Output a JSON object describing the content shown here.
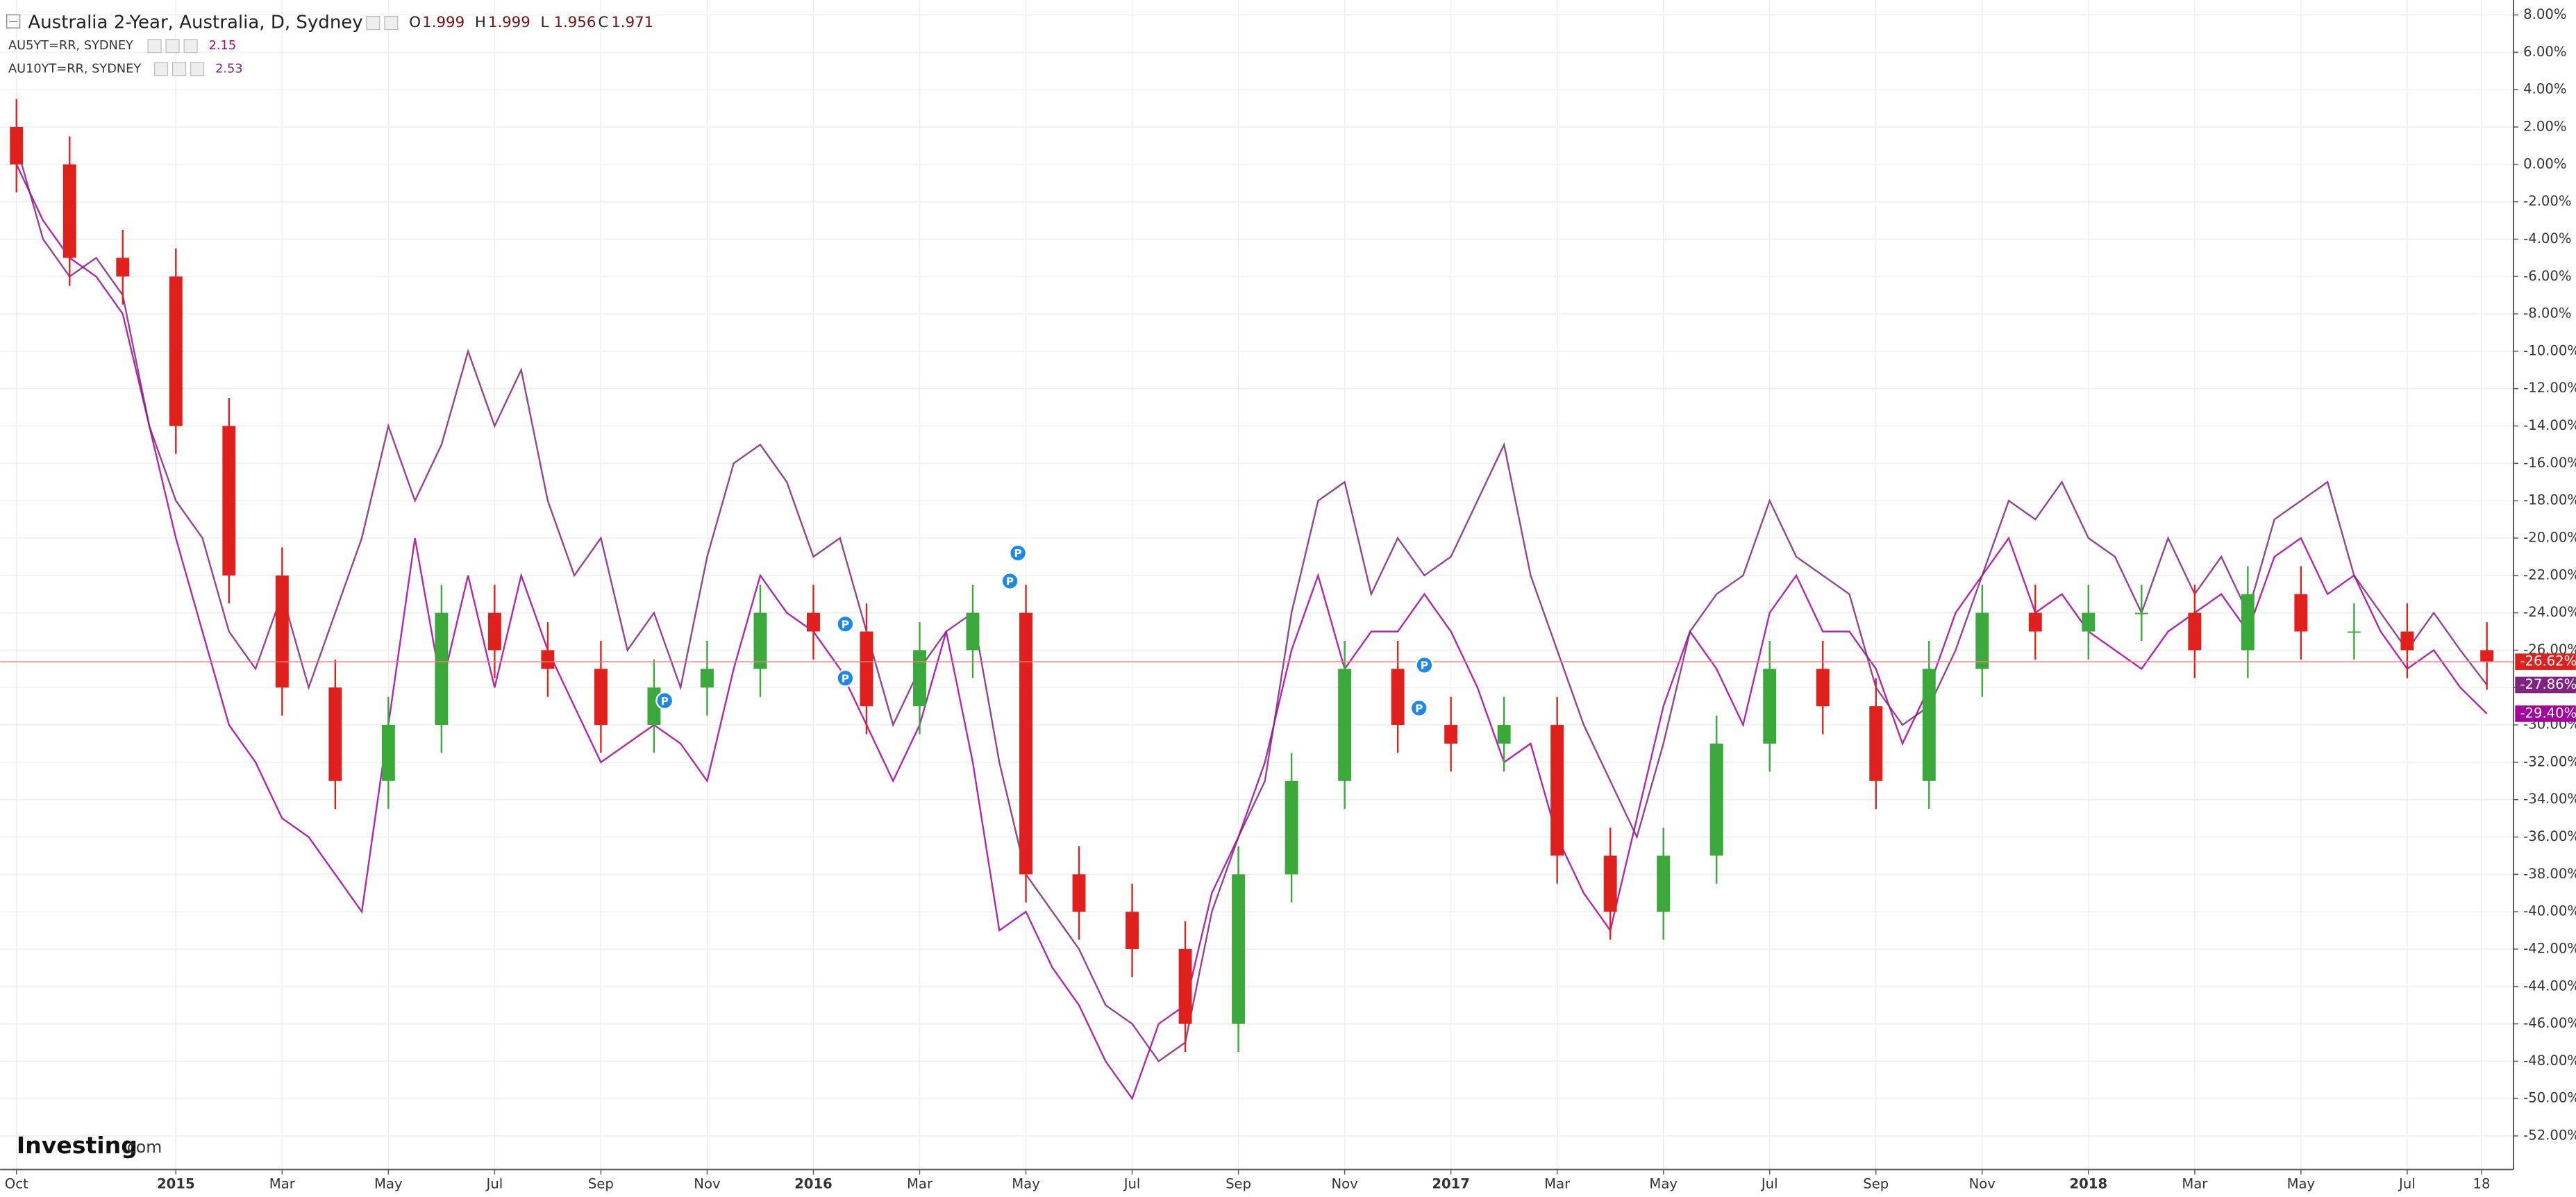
{
  "chart_data": {
    "type": "candlestick",
    "title": "Australia 2-Year, Australia, D, Sydney",
    "ohlc_labels": [
      "O",
      "H",
      "L",
      "C"
    ],
    "ohlc_values": [
      1.999,
      1.999,
      1.956,
      1.971
    ],
    "logo": "Investing",
    "logo_suffix": ".com",
    "grid": true,
    "xlim": [
      -0.2,
      47.0
    ],
    "xticks": [
      {
        "value": 0,
        "label": "Oct"
      },
      {
        "value": 3,
        "label": "2015"
      },
      {
        "value": 5,
        "label": "Mar"
      },
      {
        "value": 7,
        "label": "May"
      },
      {
        "value": 9,
        "label": "Jul"
      },
      {
        "value": 11,
        "label": "Sep"
      },
      {
        "value": 13,
        "label": "Nov"
      },
      {
        "value": 15,
        "label": "2016"
      },
      {
        "value": 17,
        "label": "Mar"
      },
      {
        "value": 19,
        "label": "May"
      },
      {
        "value": 21,
        "label": "Jul"
      },
      {
        "value": 23,
        "label": "Sep"
      },
      {
        "value": 25,
        "label": "Nov"
      },
      {
        "value": 27,
        "label": "2017"
      },
      {
        "value": 29,
        "label": "Mar"
      },
      {
        "value": 31,
        "label": "May"
      },
      {
        "value": 33,
        "label": "Jul"
      },
      {
        "value": 35,
        "label": "Sep"
      },
      {
        "value": 37,
        "label": "Nov"
      },
      {
        "value": 39,
        "label": "2018"
      },
      {
        "value": 41,
        "label": "Mar"
      },
      {
        "value": 43,
        "label": "May"
      },
      {
        "value": 45,
        "label": "Jul"
      },
      {
        "value": 46.4,
        "label": "18"
      }
    ],
    "ylim": [
      -53.8,
      8.8
    ],
    "yticks": [
      {
        "value": 8,
        "label": "8.00%"
      },
      {
        "value": 6,
        "label": "6.00%"
      },
      {
        "value": 4,
        "label": "4.00%"
      },
      {
        "value": 2,
        "label": "2.00%"
      },
      {
        "value": 0,
        "label": "0.00%"
      },
      {
        "value": -2,
        "label": "-2.00%"
      },
      {
        "value": -4,
        "label": "-4.00%"
      },
      {
        "value": -6,
        "label": "-6.00%"
      },
      {
        "value": -8,
        "label": "-8.00%"
      },
      {
        "value": -10,
        "label": "-10.00%"
      },
      {
        "value": -12,
        "label": "-12.00%"
      },
      {
        "value": -14,
        "label": "-14.00%"
      },
      {
        "value": -16,
        "label": "-16.00%"
      },
      {
        "value": -18,
        "label": "-18.00%"
      },
      {
        "value": -20,
        "label": "-20.00%"
      },
      {
        "value": -22,
        "label": "-22.00%"
      },
      {
        "value": -24,
        "label": "-24.00%"
      },
      {
        "value": -26,
        "label": "-26.00%"
      },
      {
        "value": -28,
        "label": "-28.00%"
      },
      {
        "value": -30,
        "label": "-30.00%"
      },
      {
        "value": -32,
        "label": "-32.00%"
      },
      {
        "value": -34,
        "label": "-34.00%"
      },
      {
        "value": -36,
        "label": "-36.00%"
      },
      {
        "value": -38,
        "label": "-38.00%"
      },
      {
        "value": -40,
        "label": "-40.00%"
      },
      {
        "value": -42,
        "label": "-42.00%"
      },
      {
        "value": -44,
        "label": "-44.00%"
      },
      {
        "value": -46,
        "label": "-46.00%"
      },
      {
        "value": -48,
        "label": "-48.00%"
      },
      {
        "value": -50,
        "label": "-50.00%"
      },
      {
        "value": -52,
        "label": "-52.00%"
      }
    ],
    "candle": {
      "up_color": "#3aa83a",
      "down_color": "#e0201c",
      "last_label": "-26.62%",
      "x": [
        0,
        1,
        2,
        3,
        4,
        5,
        6,
        7,
        8,
        9,
        10,
        11,
        12,
        13,
        14,
        15,
        16,
        17,
        18,
        19,
        20,
        21,
        22,
        23,
        24,
        25,
        26,
        27,
        28,
        29,
        30,
        31,
        32,
        33,
        34,
        35,
        36,
        37,
        38,
        39,
        40,
        41,
        42,
        43,
        44,
        45,
        46.5
      ],
      "open": [
        2,
        0,
        -5,
        -6,
        -14,
        -22,
        -28,
        -33,
        -30,
        -24,
        -26,
        -27,
        -30,
        -28,
        -27,
        -24,
        -25,
        -29,
        -26,
        -24,
        -38,
        -40,
        -42,
        -46,
        -38,
        -33,
        -27,
        -30,
        -31,
        -30,
        -37,
        -40,
        -37,
        -31,
        -27,
        -29,
        -33,
        -27,
        -24,
        -25,
        -24,
        -24,
        -26,
        -23,
        -25,
        -25,
        -26
      ],
      "high": [
        3.5,
        1.5,
        -3.5,
        -4.5,
        -12.5,
        -20.5,
        -26.5,
        -28.5,
        -22.5,
        -22.5,
        -24.5,
        -25.5,
        -26.5,
        -25.5,
        -22.5,
        -22.5,
        -23.5,
        -24.5,
        -22.5,
        -22.5,
        -36.5,
        -38.5,
        -40.5,
        -36.5,
        -31.5,
        -25.5,
        -25.5,
        -28.5,
        -28.5,
        -28.5,
        -35.5,
        -35.5,
        -29.5,
        -25.5,
        -25.5,
        -27.5,
        -25.5,
        -22.5,
        -22.5,
        -22.5,
        -22.5,
        -22.5,
        -21.5,
        -21.5,
        -23.5,
        -23.5,
        -24.5
      ],
      "low": [
        -1.5,
        -6.5,
        -7.5,
        -15.5,
        -23.5,
        -29.5,
        -34.5,
        -34.5,
        -31.5,
        -27.5,
        -28.5,
        -31.5,
        -31.5,
        -29.5,
        -28.5,
        -26.5,
        -30.5,
        -30.5,
        -27.5,
        -39.5,
        -41.5,
        -43.5,
        -47.5,
        -47.5,
        -39.5,
        -34.5,
        -31.5,
        -32.5,
        -32.5,
        -38.5,
        -41.5,
        -41.5,
        -38.5,
        -32.5,
        -30.5,
        -34.5,
        -34.5,
        -28.5,
        -26.5,
        -26.5,
        -25.5,
        -27.5,
        -27.5,
        -26.5,
        -26.5,
        -27.5,
        -28.12
      ],
      "close": [
        0,
        -5,
        -6,
        -14,
        -22,
        -28,
        -33,
        -30,
        -24,
        -26,
        -27,
        -30,
        -28,
        -27,
        -24,
        -25,
        -29,
        -26,
        -24,
        -38,
        -40,
        -42,
        -46,
        -38,
        -33,
        -27,
        -30,
        -31,
        -30,
        -37,
        -40,
        -37,
        -31,
        -27,
        -29,
        -33,
        -27,
        -24,
        -25,
        -24,
        -24,
        -26,
        -23,
        -25,
        -25,
        -26,
        -26.62
      ]
    },
    "x": [
      0,
      0.5,
      1,
      1.5,
      2,
      2.5,
      3,
      3.5,
      4,
      4.5,
      5,
      5.5,
      6,
      6.5,
      7,
      7.5,
      8,
      8.5,
      9,
      9.5,
      10,
      10.5,
      11,
      11.5,
      12,
      12.5,
      13,
      13.5,
      14,
      14.5,
      15,
      15.5,
      16,
      16.5,
      17,
      17.5,
      18,
      18.5,
      19,
      19.5,
      20,
      20.5,
      21,
      21.5,
      22,
      22.5,
      23,
      23.5,
      24,
      24.5,
      25,
      25.5,
      26,
      26.5,
      27,
      27.5,
      28,
      28.5,
      29,
      29.5,
      30,
      30.5,
      31,
      31.5,
      32,
      32.5,
      33,
      33.5,
      34,
      34.5,
      35,
      35.5,
      36,
      36.5,
      37,
      37.5,
      38,
      38.5,
      39,
      39.5,
      40,
      40.5,
      41,
      41.5,
      42,
      42.5,
      43,
      43.5,
      44,
      44.5,
      45,
      45.5,
      46,
      46.5
    ],
    "series": [
      {
        "name": "AU5YT=RR, SYDNEY",
        "legend_value": 2.15,
        "color": "#a3009e",
        "last_label": "-29.40%",
        "values": [
          0,
          -3,
          -5,
          -6,
          -8,
          -14,
          -20,
          -25,
          -30,
          -32,
          -35,
          -36,
          -38,
          -40,
          -30,
          -20,
          -28,
          -22,
          -28,
          -22,
          -26,
          -29,
          -32,
          -31,
          -30,
          -31,
          -33,
          -27,
          -22,
          -24,
          -25,
          -27,
          -30,
          -33,
          -30,
          -25,
          -32,
          -41,
          -40,
          -43,
          -45,
          -48,
          -50,
          -46,
          -45,
          -39,
          -36,
          -32,
          -26,
          -22,
          -27,
          -25,
          -25,
          -23,
          -25,
          -28,
          -32,
          -31,
          -36,
          -39,
          -41,
          -35,
          -29,
          -25,
          -27,
          -30,
          -24,
          -22,
          -25,
          -25,
          -27,
          -31,
          -28,
          -24,
          -22,
          -20,
          -24,
          -23,
          -25,
          -26,
          -27,
          -25,
          -24,
          -23,
          -25,
          -21,
          -20,
          -23,
          -22,
          -25,
          -27,
          -26,
          -28,
          -29.4
        ]
      },
      {
        "name": "AU10YT=RR, SYDNEY",
        "legend_value": 2.53,
        "color": "#80227f",
        "last_label": "-27.86%",
        "values": [
          1,
          -4,
          -6,
          -5,
          -7,
          -14,
          -18,
          -20,
          -25,
          -27,
          -23,
          -28,
          -24,
          -20,
          -14,
          -18,
          -15,
          -10,
          -14,
          -11,
          -18,
          -22,
          -20,
          -26,
          -24,
          -28,
          -21,
          -16,
          -15,
          -17,
          -21,
          -20,
          -25,
          -30,
          -27,
          -25,
          -24,
          -32,
          -38,
          -40,
          -42,
          -45,
          -46,
          -48,
          -47,
          -40,
          -36,
          -33,
          -24,
          -18,
          -17,
          -23,
          -20,
          -22,
          -21,
          -18,
          -15,
          -22,
          -26,
          -30,
          -33,
          -36,
          -31,
          -25,
          -23,
          -22,
          -18,
          -21,
          -22,
          -23,
          -28,
          -30,
          -29,
          -26,
          -22,
          -18,
          -19,
          -17,
          -20,
          -21,
          -24,
          -20,
          -23,
          -21,
          -24,
          -19,
          -18,
          -17,
          -22,
          -24,
          -26,
          -24,
          -26,
          -27.86
        ]
      }
    ],
    "markers": [
      {
        "x": 12.2,
        "y": -28.7,
        "label": "P"
      },
      {
        "x": 15.6,
        "y": -24.6,
        "label": "P"
      },
      {
        "x": 15.6,
        "y": -27.5,
        "label": "P"
      },
      {
        "x": 18.7,
        "y": -22.3,
        "label": "P"
      },
      {
        "x": 18.85,
        "y": -20.8,
        "label": "P"
      },
      {
        "x": 26.5,
        "y": -26.8,
        "label": "P"
      },
      {
        "x": 26.4,
        "y": -29.1,
        "label": "P"
      }
    ]
  }
}
